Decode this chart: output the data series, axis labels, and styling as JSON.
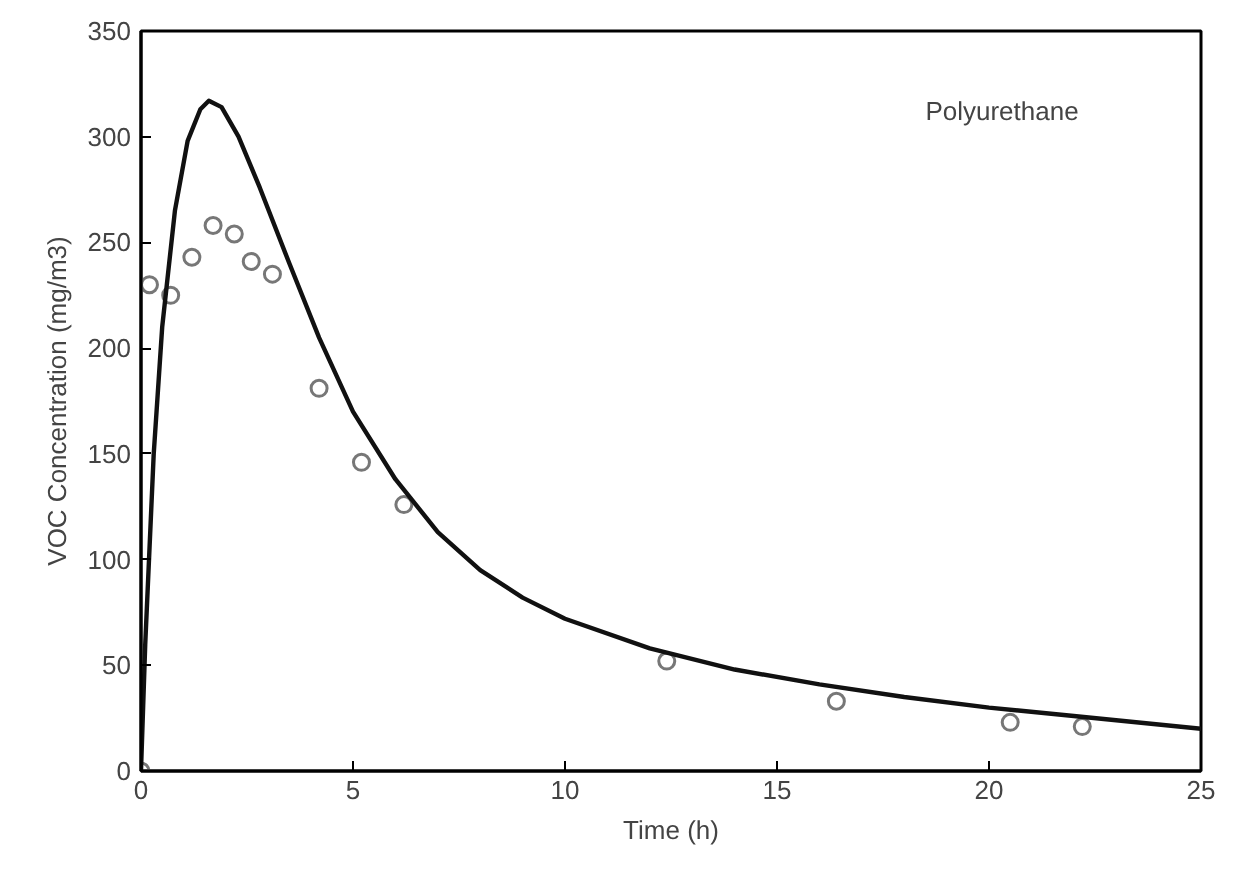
{
  "chart_data": {
    "type": "scatter",
    "xlabel": "Time (h)",
    "ylabel": "VOC Concentration (mg/m3)",
    "annotations": [
      "Polyurethane"
    ],
    "xlim": [
      0,
      25
    ],
    "ylim": [
      0,
      350
    ],
    "xticks": [
      0,
      5,
      10,
      15,
      20,
      25
    ],
    "yticks": [
      0,
      50,
      100,
      150,
      200,
      250,
      300,
      350
    ],
    "grid": false,
    "series": [
      {
        "marker": "circle",
        "color": "#777777",
        "x": [
          0,
          0.2,
          0.7,
          1.2,
          1.7,
          2.2,
          2.6,
          3.1,
          4.2,
          5.2,
          6.2,
          12.4,
          16.4,
          20.5,
          22.2
        ],
        "values": [
          0,
          230,
          225,
          243,
          258,
          254,
          241,
          235,
          181,
          146,
          126,
          52,
          33,
          23,
          21
        ]
      },
      {
        "type": "line",
        "line_style": "solid",
        "color": "#111111",
        "x": [
          0,
          0.1,
          0.3,
          0.5,
          0.8,
          1.1,
          1.4,
          1.6,
          1.9,
          2.3,
          2.8,
          3.5,
          4.2,
          5,
          6,
          7,
          8,
          9,
          10,
          12,
          14,
          16,
          18,
          20,
          22,
          25
        ],
        "values": [
          0,
          60,
          150,
          210,
          265,
          298,
          313,
          317,
          314,
          300,
          276,
          240,
          205,
          170,
          138,
          113,
          95,
          82,
          72,
          58,
          48,
          41,
          35,
          30,
          26,
          20
        ]
      }
    ]
  }
}
